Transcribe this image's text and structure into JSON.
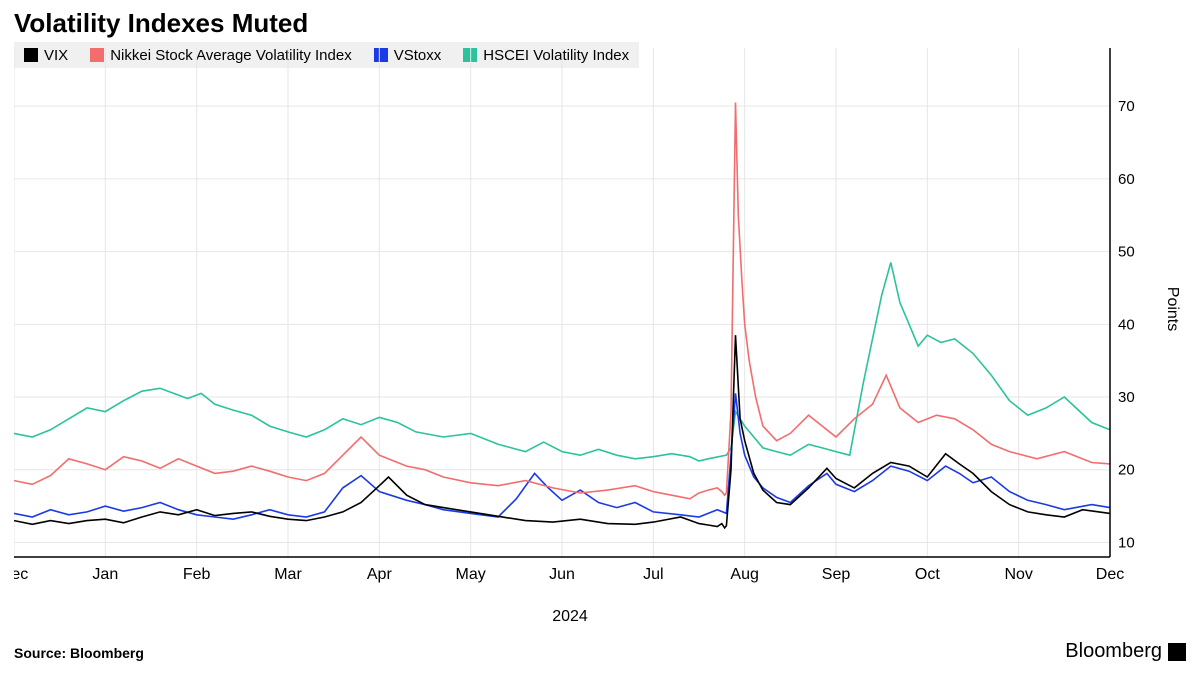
{
  "title": "Volatility Indexes Muted",
  "source": "Source: Bloomberg",
  "brand": "Bloomberg",
  "chart": {
    "type": "line",
    "background_color": "#ffffff",
    "grid_color": "#e6e6e6",
    "axis_color": "#000000",
    "line_width": 1.6,
    "title_fontsize": 26,
    "label_fontsize": 16,
    "tick_fontsize": 15,
    "y_axis": {
      "title": "Points",
      "lim": [
        8,
        78
      ],
      "ticks": [
        10,
        20,
        30,
        40,
        50,
        60,
        70
      ],
      "side": "right"
    },
    "x_axis": {
      "year_label": "2024",
      "ticks": [
        {
          "label": "Dec",
          "pos": 0
        },
        {
          "label": "Jan",
          "pos": 1
        },
        {
          "label": "Feb",
          "pos": 2
        },
        {
          "label": "Mar",
          "pos": 3
        },
        {
          "label": "Apr",
          "pos": 4
        },
        {
          "label": "May",
          "pos": 5
        },
        {
          "label": "Jun",
          "pos": 6
        },
        {
          "label": "Jul",
          "pos": 7
        },
        {
          "label": "Aug",
          "pos": 8
        },
        {
          "label": "Sep",
          "pos": 9
        },
        {
          "label": "Oct",
          "pos": 10
        },
        {
          "label": "Nov",
          "pos": 11
        },
        {
          "label": "Dec",
          "pos": 12
        }
      ]
    },
    "legend": {
      "background": "#f0f0f0",
      "items": [
        {
          "label": "VIX",
          "color": "#000000"
        },
        {
          "label": "Nikkei Stock Average Volatility Index",
          "color": "#f26d6d"
        },
        {
          "label": "VStoxx",
          "color": "#1a3ae6"
        },
        {
          "label": "HSCEI Volatility Index",
          "color": "#2bc29c"
        }
      ]
    },
    "series": [
      {
        "name": "VIX",
        "color": "#000000",
        "values": [
          13,
          12.5,
          13,
          12.6,
          13,
          13.2,
          12.7,
          13.5,
          14.2,
          13.8,
          14.5,
          13.7,
          14.0,
          14.2,
          13.6,
          13.2,
          13.0,
          13.5,
          14.2,
          15.5,
          17.8,
          19.0,
          16.5,
          15.2,
          14.8,
          14.2,
          13.6,
          13.0,
          12.8,
          13.2,
          12.6,
          12.5,
          12.8,
          13.5,
          12.6,
          12.4,
          12.2,
          12.6,
          12.0,
          12.3,
          20,
          38.5,
          27,
          24,
          19.5,
          17.2,
          15.5,
          15.2,
          17.5,
          20.2,
          18.8,
          17.5,
          19.5,
          21.0,
          20.5,
          19.0,
          22.2,
          20.8,
          19.5,
          17.0,
          15.2,
          14.2,
          13.8,
          13.5,
          14.5,
          14.0
        ],
        "x": [
          0,
          0.2,
          0.4,
          0.6,
          0.8,
          1.0,
          1.2,
          1.4,
          1.6,
          1.8,
          2.0,
          2.2,
          2.4,
          2.6,
          2.8,
          3.0,
          3.2,
          3.4,
          3.6,
          3.8,
          4.0,
          4.1,
          4.3,
          4.5,
          4.7,
          5.0,
          5.3,
          5.6,
          5.9,
          6.2,
          6.5,
          6.8,
          7.0,
          7.3,
          7.5,
          7.6,
          7.7,
          7.75,
          7.78,
          7.8,
          7.85,
          7.9,
          7.95,
          8.0,
          8.1,
          8.2,
          8.35,
          8.5,
          8.7,
          8.9,
          9.0,
          9.2,
          9.4,
          9.6,
          9.8,
          10.0,
          10.2,
          10.35,
          10.5,
          10.7,
          10.9,
          11.1,
          11.3,
          11.5,
          11.7,
          12.0
        ]
      },
      {
        "name": "Nikkei",
        "color": "#f26d6d",
        "values": [
          18.5,
          18.0,
          19.2,
          21.5,
          20.8,
          20.0,
          21.8,
          21.2,
          20.2,
          21.5,
          20.5,
          19.5,
          19.8,
          20.5,
          19.8,
          19.0,
          18.5,
          19.5,
          22.0,
          24.5,
          22.0,
          20.5,
          20.0,
          19.0,
          18.2,
          17.8,
          18.5,
          17.5,
          16.8,
          17.2,
          17.8,
          17.0,
          16.5,
          16.0,
          16.8,
          17.2,
          17.5,
          17.0,
          16.5,
          16.8,
          28,
          70.5,
          55,
          46,
          40,
          35,
          30,
          26,
          24,
          25,
          27.5,
          26,
          24.5,
          27,
          29,
          33,
          28.5,
          26.5,
          27.5,
          27,
          25.5,
          23.5,
          22.5,
          21.5,
          22.5,
          21.0,
          20.8
        ],
        "x": [
          0,
          0.2,
          0.4,
          0.6,
          0.8,
          1.0,
          1.2,
          1.4,
          1.6,
          1.8,
          2.0,
          2.2,
          2.4,
          2.6,
          2.8,
          3.0,
          3.2,
          3.4,
          3.6,
          3.8,
          4.0,
          4.3,
          4.5,
          4.7,
          5.0,
          5.3,
          5.6,
          5.9,
          6.2,
          6.5,
          6.8,
          7.0,
          7.2,
          7.4,
          7.5,
          7.6,
          7.7,
          7.75,
          7.78,
          7.8,
          7.85,
          7.9,
          7.93,
          7.97,
          8.0,
          8.05,
          8.12,
          8.2,
          8.35,
          8.5,
          8.7,
          8.85,
          9.0,
          9.2,
          9.4,
          9.55,
          9.7,
          9.9,
          10.1,
          10.3,
          10.5,
          10.7,
          10.9,
          11.2,
          11.5,
          11.8,
          12.0
        ]
      },
      {
        "name": "VStoxx",
        "color": "#1a3ae6",
        "values": [
          14.0,
          13.5,
          14.5,
          13.8,
          14.2,
          15.0,
          14.3,
          14.8,
          15.5,
          14.5,
          13.8,
          13.5,
          13.2,
          13.8,
          14.5,
          13.8,
          13.5,
          14.2,
          17.5,
          19.2,
          17.0,
          15.8,
          15.2,
          14.5,
          14.0,
          13.5,
          16.0,
          19.5,
          17.5,
          15.8,
          17.2,
          15.5,
          14.8,
          15.5,
          14.2,
          13.8,
          13.5,
          14.0,
          14.5,
          14.0,
          22,
          30.5,
          25,
          22,
          19,
          17.5,
          16.2,
          15.5,
          17.8,
          19.5,
          18.0,
          17.0,
          18.5,
          20.5,
          19.8,
          18.5,
          20.5,
          19.5,
          18.2,
          19.0,
          17.0,
          15.8,
          15.2,
          14.5,
          15.2,
          14.8
        ],
        "x": [
          0,
          0.2,
          0.4,
          0.6,
          0.8,
          1.0,
          1.2,
          1.4,
          1.6,
          1.8,
          2.0,
          2.2,
          2.4,
          2.6,
          2.8,
          3.0,
          3.2,
          3.4,
          3.6,
          3.8,
          4.0,
          4.3,
          4.5,
          4.7,
          5.0,
          5.3,
          5.5,
          5.7,
          5.85,
          6.0,
          6.2,
          6.4,
          6.6,
          6.8,
          7.0,
          7.3,
          7.5,
          7.6,
          7.7,
          7.8,
          7.85,
          7.9,
          7.95,
          8.0,
          8.1,
          8.2,
          8.35,
          8.5,
          8.7,
          8.9,
          9.0,
          9.2,
          9.4,
          9.6,
          9.8,
          10.0,
          10.2,
          10.35,
          10.5,
          10.7,
          10.9,
          11.1,
          11.3,
          11.5,
          11.8,
          12.0
        ]
      },
      {
        "name": "HSCEI",
        "color": "#2bc29c",
        "values": [
          25,
          24.5,
          25.5,
          27,
          28.5,
          28,
          29.5,
          30.8,
          31.2,
          30.5,
          29.8,
          30.5,
          29.0,
          28.2,
          27.5,
          26.0,
          25.2,
          24.5,
          25.5,
          27.0,
          26.2,
          27.2,
          26.5,
          25.2,
          24.5,
          25.0,
          23.5,
          22.5,
          23.8,
          22.5,
          22.0,
          22.8,
          22.0,
          21.5,
          21.8,
          22.2,
          21.8,
          21.2,
          21.5,
          22.0,
          23,
          28,
          26,
          24.5,
          23,
          22.5,
          22.0,
          23.5,
          23.0,
          22.5,
          22.0,
          32,
          38,
          44,
          48.5,
          43,
          40,
          37,
          38.5,
          37.5,
          38.0,
          36.0,
          33.0,
          29.5,
          27.5,
          28.5,
          30.0,
          26.5,
          25.5
        ],
        "x": [
          0,
          0.2,
          0.4,
          0.6,
          0.8,
          1.0,
          1.2,
          1.4,
          1.6,
          1.75,
          1.9,
          2.05,
          2.2,
          2.4,
          2.6,
          2.8,
          3.0,
          3.2,
          3.4,
          3.6,
          3.8,
          4.0,
          4.2,
          4.4,
          4.7,
          5.0,
          5.3,
          5.6,
          5.8,
          6.0,
          6.2,
          6.4,
          6.6,
          6.8,
          7.0,
          7.2,
          7.4,
          7.5,
          7.6,
          7.8,
          7.85,
          7.9,
          8.0,
          8.1,
          8.2,
          8.35,
          8.5,
          8.7,
          8.85,
          9.0,
          9.15,
          9.3,
          9.4,
          9.5,
          9.6,
          9.7,
          9.8,
          9.9,
          10.0,
          10.15,
          10.3,
          10.5,
          10.7,
          10.9,
          11.1,
          11.3,
          11.5,
          11.8,
          12.0
        ]
      }
    ]
  }
}
